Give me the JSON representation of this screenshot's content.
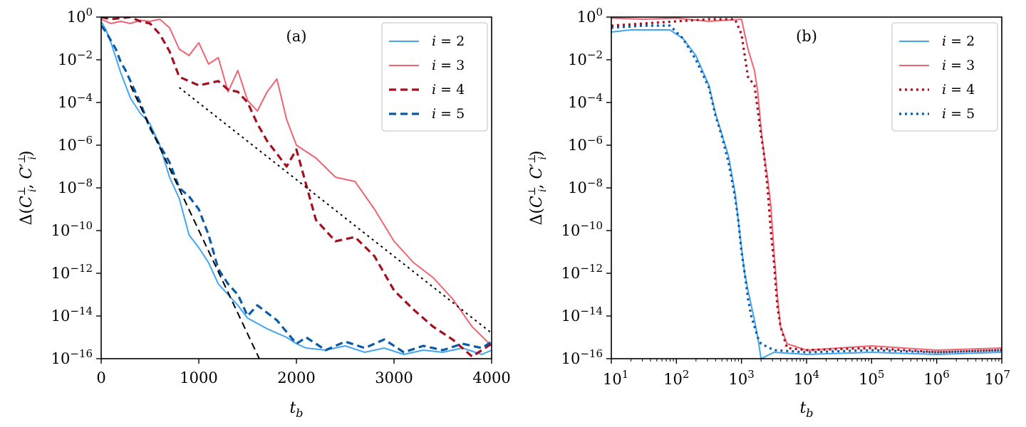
{
  "chart_data": [
    {
      "type": "line",
      "panel_label": "(a)",
      "xlabel": "t_b",
      "ylabel": "Δ(C⊥_i, C′⊥_i)",
      "xscale": "linear",
      "yscale": "log",
      "xlim": [
        0,
        4000
      ],
      "ylim_exp": [
        -16,
        0
      ],
      "x_ticks": [
        "0",
        "1000",
        "2000",
        "3000",
        "4000"
      ],
      "y_tick_exponents": [
        0,
        -2,
        -4,
        -6,
        -8,
        -10,
        -12,
        -14,
        -16
      ],
      "legend_position": "top-right",
      "series": [
        {
          "name": "i = 2",
          "label_var": "i",
          "label_val": "= 2",
          "color": "#42a5f5",
          "style": "solid",
          "x": [
            0,
            50,
            100,
            150,
            200,
            250,
            300,
            400,
            500,
            600,
            700,
            800,
            900,
            1000,
            1100,
            1200,
            1300,
            1400,
            1500,
            1700,
            1900,
            2000,
            2100,
            2300,
            2500,
            2700,
            2900,
            3100,
            3300,
            3500,
            3700,
            3900,
            4000
          ],
          "log10y": [
            -0.2,
            -0.6,
            -1.2,
            -1.9,
            -2.6,
            -3.2,
            -3.8,
            -4.5,
            -5.0,
            -6.0,
            -7.5,
            -8.5,
            -10.2,
            -10.8,
            -11.5,
            -12.5,
            -13.0,
            -13.5,
            -14.1,
            -14.6,
            -15.0,
            -15.3,
            -15.5,
            -15.6,
            -15.4,
            -15.7,
            -15.5,
            -15.8,
            -15.6,
            -15.7,
            -15.5,
            -15.8,
            -15.6
          ]
        },
        {
          "name": "i = 3",
          "label_var": "i",
          "label_val": "= 3",
          "color": "#f06472",
          "style": "solid",
          "x": [
            0,
            100,
            200,
            300,
            400,
            500,
            600,
            700,
            800,
            900,
            1000,
            1100,
            1200,
            1300,
            1400,
            1500,
            1600,
            1700,
            1800,
            1900,
            2000,
            2200,
            2400,
            2600,
            2800,
            3000,
            3200,
            3400,
            3600,
            3800,
            4000
          ],
          "log10y": [
            -0.1,
            -0.3,
            -0.2,
            -0.3,
            -0.15,
            -0.2,
            -0.1,
            -0.5,
            -1.5,
            -1.8,
            -1.2,
            -2.2,
            -1.9,
            -3.5,
            -2.5,
            -3.9,
            -4.4,
            -3.5,
            -2.9,
            -4.8,
            -6.0,
            -6.6,
            -7.5,
            -7.7,
            -9.0,
            -10.5,
            -11.5,
            -12.2,
            -13.2,
            -14.5,
            -15.4
          ]
        },
        {
          "name": "i = 4",
          "label_var": "i",
          "label_val": "= 4",
          "color": "#a50f1e",
          "style": "dashed",
          "x": [
            0,
            100,
            200,
            300,
            400,
            500,
            600,
            700,
            800,
            900,
            1000,
            1100,
            1200,
            1300,
            1400,
            1500,
            1600,
            1700,
            1800,
            1900,
            2000,
            2200,
            2400,
            2600,
            2800,
            3000,
            3200,
            3400,
            3600,
            3800,
            4000
          ],
          "log10y": [
            0,
            -0.1,
            -0.05,
            0,
            -0.2,
            -0.3,
            -0.8,
            -1.6,
            -2.8,
            -3.0,
            -3.2,
            -3.1,
            -3.0,
            -3.4,
            -3.5,
            -4.0,
            -5.0,
            -5.8,
            -6.4,
            -7.0,
            -6.2,
            -9.5,
            -10.5,
            -10.3,
            -11.2,
            -12.8,
            -13.7,
            -14.5,
            -15.1,
            -15.9,
            -15.3
          ]
        },
        {
          "name": "i = 5",
          "label_var": "i",
          "label_val": "= 5",
          "color": "#0a5aa8",
          "style": "dashed",
          "x": [
            0,
            50,
            100,
            150,
            200,
            250,
            300,
            400,
            500,
            600,
            700,
            800,
            900,
            1000,
            1100,
            1200,
            1300,
            1400,
            1500,
            1600,
            1800,
            2000,
            2100,
            2300,
            2500,
            2700,
            2900,
            3100,
            3300,
            3500,
            3700,
            3900,
            4000
          ],
          "log10y": [
            -0.4,
            -0.7,
            -1.1,
            -1.5,
            -2.1,
            -2.5,
            -3.0,
            -4.0,
            -5.2,
            -6.0,
            -6.8,
            -8.0,
            -8.4,
            -9.0,
            -10.2,
            -11.8,
            -12.5,
            -13.0,
            -14.0,
            -13.5,
            -14.2,
            -15.3,
            -15.0,
            -15.6,
            -15.2,
            -15.5,
            -15.1,
            -15.7,
            -15.4,
            -15.6,
            -15.3,
            -15.5,
            -15.2
          ]
        }
      ],
      "guides": [
        {
          "style": "dashed",
          "color": "#000000",
          "x": [
            300,
            1620
          ],
          "log10y": [
            -3.2,
            -16
          ]
        },
        {
          "style": "dotted",
          "color": "#000000",
          "x": [
            800,
            4000
          ],
          "log10y": [
            -3.3,
            -14.8
          ]
        }
      ]
    },
    {
      "type": "line",
      "panel_label": "(b)",
      "xlabel": "t_b",
      "ylabel": "Δ(C⊥_i, C′⊥_i)",
      "xscale": "log",
      "yscale": "log",
      "xlim_exp": [
        1,
        7
      ],
      "ylim_exp": [
        -16,
        0
      ],
      "x_tick_exponents": [
        1,
        2,
        3,
        4,
        5,
        6,
        7
      ],
      "y_tick_exponents": [
        0,
        -2,
        -4,
        -6,
        -8,
        -10,
        -12,
        -14,
        -16
      ],
      "legend_position": "top-right",
      "series": [
        {
          "name": "i = 2",
          "label_var": "i",
          "label_val": "= 2",
          "color": "#42a5f5",
          "style": "solid",
          "log10x": [
            1.0,
            1.3,
            1.6,
            1.9,
            2.1,
            2.3,
            2.5,
            2.6,
            2.7,
            2.8,
            2.9,
            2.95,
            3.0,
            3.05,
            3.1,
            3.15,
            3.2,
            3.25,
            3.3,
            3.5,
            4.0,
            5.0,
            6.0,
            7.0
          ],
          "log10y": [
            -0.7,
            -0.6,
            -0.6,
            -0.6,
            -1.0,
            -1.8,
            -3.2,
            -4.5,
            -5.5,
            -6.5,
            -8.2,
            -9.5,
            -10.8,
            -12.0,
            -12.8,
            -13.5,
            -14.2,
            -15.0,
            -16.0,
            -15.7,
            -15.8,
            -15.7,
            -15.8,
            -15.7
          ]
        },
        {
          "name": "i = 3",
          "label_var": "i",
          "label_val": "= 3",
          "color": "#f06472",
          "style": "solid",
          "log10x": [
            1.0,
            1.5,
            2.0,
            2.5,
            3.0,
            3.1,
            3.2,
            3.25,
            3.3,
            3.35,
            3.4,
            3.45,
            3.5,
            3.55,
            3.6,
            3.7,
            4.0,
            5.0,
            6.0,
            7.0
          ],
          "log10y": [
            -0.05,
            -0.1,
            -0.05,
            -0.2,
            -0.1,
            -1.5,
            -2.5,
            -3.5,
            -5.2,
            -6.5,
            -7.5,
            -8.8,
            -11.0,
            -13.0,
            -14.5,
            -15.3,
            -15.6,
            -15.4,
            -15.6,
            -15.5
          ]
        },
        {
          "name": "i = 4",
          "label_var": "i",
          "label_val": "= 4",
          "color": "#a50f1e",
          "style": "dotted",
          "log10x": [
            1.0,
            1.5,
            2.0,
            2.5,
            2.9,
            3.0,
            3.1,
            3.2,
            3.3,
            3.35,
            3.4,
            3.45,
            3.5,
            3.55,
            3.6,
            3.7,
            4.0,
            5.0,
            6.0,
            7.0
          ],
          "log10y": [
            -0.4,
            -0.3,
            -0.2,
            -0.1,
            -0.1,
            -0.8,
            -2.8,
            -3.2,
            -5.5,
            -6.5,
            -8.0,
            -10.0,
            -11.5,
            -13.5,
            -14.5,
            -15.5,
            -15.6,
            -15.5,
            -15.7,
            -15.6
          ]
        },
        {
          "name": "i = 5",
          "label_var": "i",
          "label_val": "= 5",
          "color": "#0a5aa8",
          "style": "dotted",
          "log10x": [
            1.0,
            1.5,
            1.9,
            2.1,
            2.3,
            2.5,
            2.6,
            2.7,
            2.8,
            2.9,
            2.95,
            3.0,
            3.05,
            3.1,
            3.15,
            3.2,
            3.25,
            3.3,
            3.5,
            4.0,
            5.0,
            6.0,
            7.0
          ],
          "log10y": [
            -0.5,
            -0.4,
            -0.4,
            -1.0,
            -2.0,
            -3.3,
            -4.6,
            -5.6,
            -6.8,
            -8.4,
            -9.5,
            -11.0,
            -12.0,
            -13.2,
            -14.0,
            -14.5,
            -15.0,
            -15.3,
            -15.6,
            -15.7,
            -15.6,
            -15.7,
            -15.6
          ]
        }
      ]
    }
  ]
}
